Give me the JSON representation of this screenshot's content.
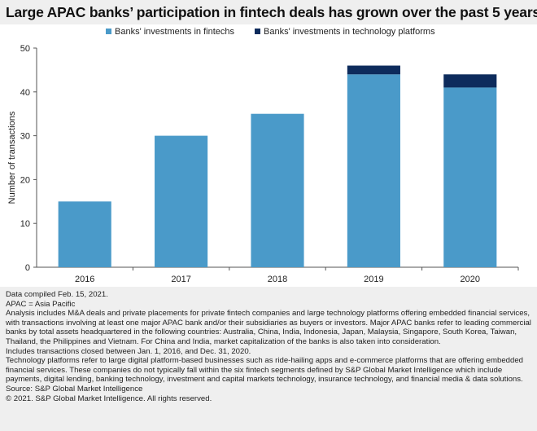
{
  "title": "Large APAC banks’ participation in fintech deals has grown over the past 5 years",
  "chart_data": {
    "type": "bar",
    "stacked": true,
    "categories": [
      "2016",
      "2017",
      "2018",
      "2019",
      "2020"
    ],
    "series": [
      {
        "name": "Banks' investments in fintechs",
        "values": [
          15,
          30,
          35,
          44,
          41
        ],
        "color": "#4a9ac9"
      },
      {
        "name": "Banks' investments in technology platforms",
        "values": [
          0,
          0,
          0,
          2,
          3
        ],
        "color": "#0d2b5c"
      }
    ],
    "ylabel": "Number of transactions",
    "xlabel": "",
    "ylim": [
      0,
      50
    ],
    "yticks": [
      0,
      10,
      20,
      30,
      40,
      50
    ],
    "grid": false,
    "legend": "top"
  },
  "notes": [
    "Data compiled Feb. 15, 2021.",
    "APAC = Asia Pacific",
    "Analysis includes M&A deals and private placements for private fintech companies and large technology platforms offering embedded financial services, with transactions involving at least one major APAC bank and/or their subsidiaries as buyers or investors. Major APAC banks refer to leading commercial banks by total assets headquartered in the following countries: Australia, China, India, Indonesia, Japan, Malaysia, Singapore, South Korea, Taiwan, Thailand, the Philippines and Vietnam. For China and India, market capitalization of the banks is also taken into consideration.",
    "Includes transactions closed between Jan. 1, 2016, and Dec. 31, 2020.",
    "Technology platforms refer to large digital platform-based businesses such as ride-hailing apps and e-commerce platforms that are offering embedded financial services. These companies do not typically fall within the six fintech segments defined by S&P Global Market Intelligence which include payments, digital lending, banking technology, investment and capital markets technology, insurance technology, and financial media & data solutions.",
    "Source: S&P Global Market Intelligence",
    "© 2021. S&P Global Market Intelligence. All rights reserved."
  ]
}
